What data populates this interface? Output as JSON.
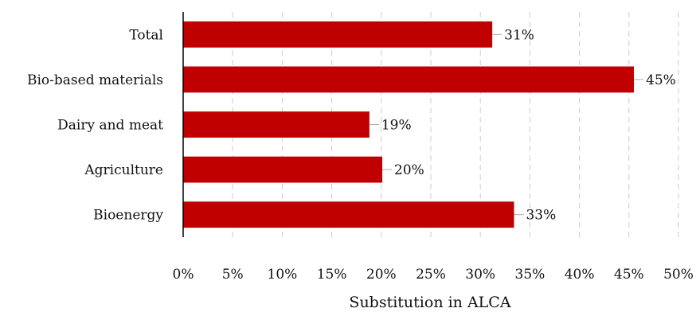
{
  "chart_data": {
    "type": "bar",
    "orientation": "horizontal",
    "categories": [
      "Total",
      "Bio-based materials",
      "Dairy and meat",
      "Agriculture",
      "Bioenergy"
    ],
    "values": [
      31.2,
      45.5,
      18.8,
      20.1,
      33.4
    ],
    "data_labels": [
      "31%",
      "45%",
      "19%",
      "20%",
      "33%"
    ],
    "xlim": [
      0,
      50
    ],
    "xticks": [
      0,
      5,
      10,
      15,
      20,
      25,
      30,
      35,
      40,
      45,
      50
    ],
    "xtick_labels": [
      "0%",
      "5%",
      "10%",
      "15%",
      "20%",
      "25%",
      "30%",
      "35%",
      "40%",
      "45%",
      "50%"
    ],
    "xlabel": "Substitution in ALCA",
    "ylabel": "",
    "title": "",
    "grid": "vertical dashed",
    "bar_color": "#c00000",
    "grid_color": "#cccccc"
  }
}
